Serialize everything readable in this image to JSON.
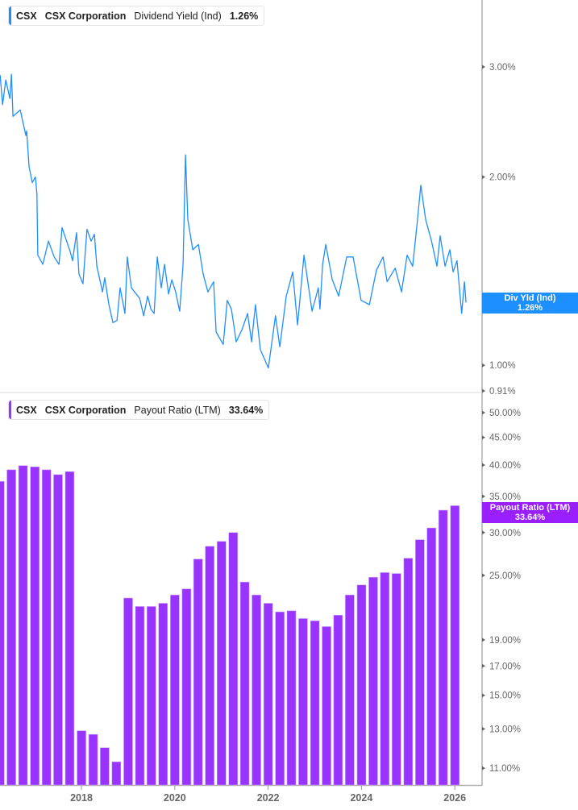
{
  "colors": {
    "yield_line": "#1e8fff",
    "payout_bar": "#9933ff",
    "axis": "#b0b0b0",
    "tick_text": "#666666"
  },
  "top_legend": {
    "ticker": "CSX",
    "company": "CSX Corporation",
    "metric": "Dividend Yield (Ind)",
    "value": "1.26%"
  },
  "bottom_legend": {
    "ticker": "CSX",
    "company": "CSX Corporation",
    "metric": "Payout Ratio (LTM)",
    "value": "33.64%"
  },
  "top_tag": {
    "label": "Div Yld (Ind)",
    "value": "1.26%"
  },
  "bottom_tag": {
    "label": "Payout Ratio (LTM)",
    "value": "33.64%"
  },
  "chart_data": [
    {
      "type": "line",
      "series_name": "Dividend Yield (Ind)",
      "y_scale": "log",
      "y_ticks": [
        "3.00%",
        "2.00%",
        "1.00%",
        "0.91%"
      ],
      "y_tick_values": [
        3.0,
        2.0,
        1.0,
        0.91
      ],
      "ylim": [
        0.91,
        3.3
      ],
      "grid": false,
      "points": [
        [
          "2016-04-04",
          2.91
        ],
        [
          "2016-04-23",
          2.61
        ],
        [
          "2016-05-18",
          2.86
        ],
        [
          "2016-06-19",
          2.67
        ],
        [
          "2016-07-01",
          2.92
        ],
        [
          "2016-07-13",
          2.5
        ],
        [
          "2016-09-09",
          2.56
        ],
        [
          "2016-10-23",
          2.33
        ],
        [
          "2016-10-29",
          2.37
        ],
        [
          "2016-11-17",
          2.08
        ],
        [
          "2016-12-12",
          1.96
        ],
        [
          "2017-01-06",
          2.0
        ],
        [
          "2017-01-18",
          1.88
        ],
        [
          "2017-01-25",
          1.5
        ],
        [
          "2017-03-03",
          1.45
        ],
        [
          "2017-04-17",
          1.58
        ],
        [
          "2017-06-01",
          1.49
        ],
        [
          "2017-07-08",
          1.45
        ],
        [
          "2017-08-02",
          1.66
        ],
        [
          "2017-10-04",
          1.52
        ],
        [
          "2017-10-23",
          1.47
        ],
        [
          "2017-11-24",
          1.63
        ],
        [
          "2017-12-12",
          1.4
        ],
        [
          "2018-01-13",
          1.35
        ],
        [
          "2018-02-14",
          1.65
        ],
        [
          "2018-03-16",
          1.58
        ],
        [
          "2018-04-11",
          1.62
        ],
        [
          "2018-04-30",
          1.44
        ],
        [
          "2018-06-14",
          1.31
        ],
        [
          "2018-07-01",
          1.38
        ],
        [
          "2018-08-03",
          1.25
        ],
        [
          "2018-09-04",
          1.17
        ],
        [
          "2018-10-05",
          1.18
        ],
        [
          "2018-10-30",
          1.33
        ],
        [
          "2018-12-07",
          1.21
        ],
        [
          "2018-12-25",
          1.49
        ],
        [
          "2019-01-27",
          1.33
        ],
        [
          "2019-02-21",
          1.31
        ],
        [
          "2019-03-30",
          1.28
        ],
        [
          "2019-05-01",
          1.2
        ],
        [
          "2019-06-02",
          1.29
        ],
        [
          "2019-06-27",
          1.23
        ],
        [
          "2019-07-22",
          1.21
        ],
        [
          "2019-08-16",
          1.49
        ],
        [
          "2019-09-17",
          1.33
        ],
        [
          "2019-10-12",
          1.45
        ],
        [
          "2019-11-13",
          1.3
        ],
        [
          "2019-12-08",
          1.37
        ],
        [
          "2020-01-08",
          1.31
        ],
        [
          "2020-02-09",
          1.22
        ],
        [
          "2020-03-05",
          1.45
        ],
        [
          "2020-03-24",
          2.17
        ],
        [
          "2020-04-12",
          1.71
        ],
        [
          "2020-05-20",
          1.53
        ],
        [
          "2020-07-03",
          1.56
        ],
        [
          "2020-08-10",
          1.4
        ],
        [
          "2020-09-17",
          1.31
        ],
        [
          "2020-11-01",
          1.36
        ],
        [
          "2020-11-20",
          1.13
        ],
        [
          "2021-01-15",
          1.08
        ],
        [
          "2021-02-16",
          1.27
        ],
        [
          "2021-03-18",
          1.23
        ],
        [
          "2021-04-06",
          1.16
        ],
        [
          "2021-04-25",
          1.09
        ],
        [
          "2021-06-09",
          1.14
        ],
        [
          "2021-07-23",
          1.21
        ],
        [
          "2021-08-24",
          1.09
        ],
        [
          "2021-09-24",
          1.25
        ],
        [
          "2021-11-01",
          1.06
        ],
        [
          "2022-01-03",
          0.99
        ],
        [
          "2022-02-28",
          1.2
        ],
        [
          "2022-04-01",
          1.07
        ],
        [
          "2022-05-21",
          1.29
        ],
        [
          "2022-07-11",
          1.41
        ],
        [
          "2022-08-18",
          1.16
        ],
        [
          "2022-10-08",
          1.5
        ],
        [
          "2022-12-10",
          1.22
        ],
        [
          "2023-01-29",
          1.33
        ],
        [
          "2023-02-11",
          1.23
        ],
        [
          "2023-03-01",
          1.45
        ],
        [
          "2023-03-26",
          1.56
        ],
        [
          "2023-05-16",
          1.37
        ],
        [
          "2023-07-05",
          1.29
        ],
        [
          "2023-09-07",
          1.49
        ],
        [
          "2023-10-27",
          1.49
        ],
        [
          "2023-12-29",
          1.27
        ],
        [
          "2024-03-02",
          1.25
        ],
        [
          "2024-04-27",
          1.42
        ],
        [
          "2024-06-18",
          1.49
        ],
        [
          "2024-07-19",
          1.36
        ],
        [
          "2024-09-21",
          1.43
        ],
        [
          "2024-11-10",
          1.31
        ],
        [
          "2024-12-23",
          1.5
        ],
        [
          "2025-02-06",
          1.44
        ],
        [
          "2025-03-08",
          1.67
        ],
        [
          "2025-04-09",
          1.94
        ],
        [
          "2025-05-16",
          1.71
        ],
        [
          "2025-07-01",
          1.58
        ],
        [
          "2025-08-13",
          1.44
        ],
        [
          "2025-09-08",
          1.61
        ],
        [
          "2025-10-16",
          1.44
        ],
        [
          "2025-11-23",
          1.53
        ],
        [
          "2025-12-18",
          1.41
        ],
        [
          "2026-01-18",
          1.47
        ],
        [
          "2026-02-24",
          1.21
        ],
        [
          "2026-03-15",
          1.36
        ],
        [
          "2026-03-28",
          1.26
        ]
      ]
    },
    {
      "type": "bar",
      "series_name": "Payout Ratio (LTM)",
      "y_scale": "log",
      "y_ticks": [
        "50.00%",
        "45.00%",
        "40.00%",
        "35.00%",
        "30.00%",
        "25.00%",
        "19.00%",
        "17.00%",
        "15.00%",
        "13.00%",
        "11.00%"
      ],
      "y_tick_values": [
        50,
        45,
        40,
        35,
        30,
        25,
        19,
        17,
        15,
        13,
        11
      ],
      "x_ticks": [
        "2018",
        "2020",
        "2022",
        "2024",
        "2026"
      ],
      "grid": false,
      "categories": [
        "2016-03-31",
        "2016-06-30",
        "2016-09-30",
        "2016-12-31",
        "2017-03-31",
        "2017-06-30",
        "2017-09-30",
        "2017-12-31",
        "2018-03-31",
        "2018-06-30",
        "2018-09-30",
        "2018-12-31",
        "2019-03-31",
        "2019-06-30",
        "2019-09-30",
        "2019-12-31",
        "2020-03-31",
        "2020-06-30",
        "2020-09-30",
        "2020-12-31",
        "2021-03-31",
        "2021-06-30",
        "2021-09-30",
        "2021-12-31",
        "2022-03-31",
        "2022-06-30",
        "2022-09-30",
        "2022-12-31",
        "2023-03-31",
        "2023-06-30",
        "2023-09-30",
        "2023-12-31",
        "2024-03-31",
        "2024-06-30",
        "2024-09-30",
        "2024-12-31",
        "2025-03-31",
        "2025-06-30",
        "2025-09-30",
        "2025-12-31"
      ],
      "values": [
        37.3,
        39.2,
        39.9,
        39.7,
        39.2,
        38.4,
        38.9,
        12.9,
        12.7,
        12.0,
        11.3,
        22.7,
        21.9,
        21.9,
        22.2,
        23.0,
        23.6,
        26.8,
        28.3,
        28.9,
        30.0,
        24.3,
        23.0,
        22.2,
        21.4,
        21.5,
        20.8,
        20.6,
        20.1,
        21.1,
        23.0,
        24.0,
        24.8,
        25.3,
        25.2,
        26.9,
        29.1,
        30.6,
        33.0,
        33.64
      ]
    }
  ]
}
